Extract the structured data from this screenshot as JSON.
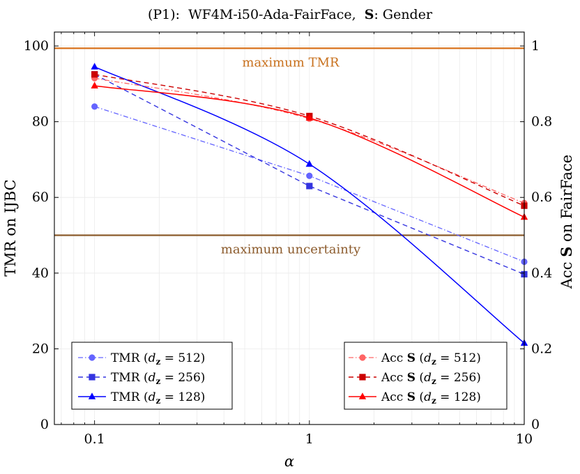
{
  "chart_data": {
    "type": "line",
    "title": "(P1):  WF4M-i50-Ada-FairFace,  S: Gender",
    "title_parts": {
      "prefix": "(P1):  WF4M-i50-Ada-FairFace,  ",
      "bold": "S",
      "suffix": ": Gender"
    },
    "xlabel": "α",
    "ylabel_left": "TMR on IJBC",
    "ylabel_right": {
      "prefix": "Acc ",
      "bold": "S",
      "suffix": " on FairFace"
    },
    "x_scale": "log",
    "x": [
      0.1,
      1,
      10
    ],
    "x_tick_labels": [
      "0.1",
      "1",
      "10"
    ],
    "xlim": [
      0.065,
      10
    ],
    "ylim_left": [
      0,
      100
    ],
    "ylim_right": [
      0,
      1
    ],
    "y_ticks_left": [
      "0",
      "20",
      "40",
      "60",
      "80",
      "100"
    ],
    "y_ticks_right": [
      "0",
      "0.2",
      "0.4",
      "0.6",
      "0.8",
      "1"
    ],
    "grid": true,
    "series": [
      {
        "name": "TMR (d_z = 512)",
        "legend": {
          "main": "TMR (",
          "var": "d",
          "sub": "z",
          "eq": " = 512)"
        },
        "axis": "left",
        "values": [
          84.0,
          65.7,
          43.0
        ],
        "color": "#6464ff",
        "marker": "circle",
        "dash": "7,3,1.5,3",
        "smooth": false,
        "width": 1.3
      },
      {
        "name": "TMR (d_z = 256)",
        "legend": {
          "main": "TMR (",
          "var": "d",
          "sub": "z",
          "eq": " = 256)"
        },
        "axis": "left",
        "values": [
          92.5,
          63.0,
          39.7
        ],
        "color": "#3434e0",
        "marker": "square",
        "dash": "7,5",
        "smooth": false,
        "width": 1.4
      },
      {
        "name": "TMR (d_z = 128)",
        "legend": {
          "main": "TMR (",
          "var": "d",
          "sub": "z",
          "eq": " = 128)"
        },
        "axis": "left",
        "values": [
          94.5,
          68.8,
          21.5
        ],
        "color": "#0000ff",
        "marker": "triangle",
        "dash": "",
        "smooth": true,
        "width": 1.5
      },
      {
        "name": "Acc S (d_z = 512)",
        "legend": {
          "main": "Acc ",
          "bold": "S",
          "paren": " (",
          "var": "d",
          "sub": "z",
          "eq": " = 512)"
        },
        "axis": "right",
        "values": [
          0.915,
          0.808,
          0.585
        ],
        "color": "#ff6464",
        "marker": "circle",
        "dash": "7,3,1.5,3",
        "smooth": true,
        "width": 1.3
      },
      {
        "name": "Acc S (d_z = 256)",
        "legend": {
          "main": "Acc ",
          "bold": "S",
          "paren": " (",
          "var": "d",
          "sub": "z",
          "eq": " = 256)"
        },
        "axis": "right",
        "values": [
          0.925,
          0.815,
          0.578
        ],
        "color": "#cc0000",
        "marker": "square",
        "dash": "7,5",
        "smooth": true,
        "width": 1.4
      },
      {
        "name": "Acc S (d_z = 128)",
        "legend": {
          "main": "Acc ",
          "bold": "S",
          "paren": " (",
          "var": "d",
          "sub": "z",
          "eq": " = 128)"
        },
        "axis": "right",
        "values": [
          0.895,
          0.81,
          0.548
        ],
        "color": "#ff0000",
        "marker": "triangle",
        "dash": "",
        "smooth": true,
        "width": 1.5
      }
    ],
    "reference_lines": [
      {
        "label": "maximum TMR",
        "axis": "left",
        "value": 99.4,
        "color": "#d9741f",
        "label_color": "#c8701c",
        "label_above": false
      },
      {
        "label": "maximum uncertainty",
        "axis": "left",
        "value": 50,
        "color": "#8b5a2b",
        "label_color": "#8b5a2b",
        "label_above": false
      }
    ],
    "legends": [
      {
        "position": "bottom-left",
        "series": [
          0,
          1,
          2
        ]
      },
      {
        "position": "bottom-right",
        "series": [
          3,
          4,
          5
        ]
      }
    ]
  }
}
